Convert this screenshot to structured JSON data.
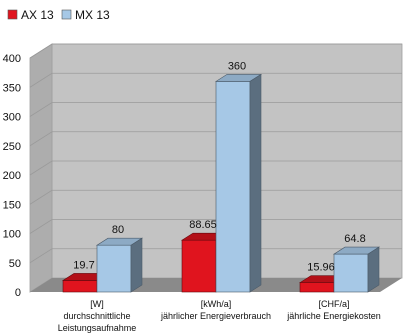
{
  "chart_data": {
    "type": "bar",
    "style": "3d-clustered-column",
    "categories": [
      [
        "[W]",
        "durchschnittliche",
        "Leistungsaufnahme"
      ],
      [
        "[kWh/a]",
        "jährlicher Energieverbrauch"
      ],
      [
        "[CHF/a]",
        "jährliche Energiekosten"
      ]
    ],
    "series": [
      {
        "name": "AX 13",
        "values": [
          19.7,
          88.65,
          15.96
        ],
        "value_labels": [
          "19.7",
          "88.65",
          "15.96"
        ]
      },
      {
        "name": "MX 13",
        "values": [
          80,
          360,
          64.8
        ],
        "value_labels": [
          "80",
          "360",
          "64.8"
        ]
      }
    ],
    "y_ticks": [
      "0",
      "50",
      "100",
      "150",
      "200",
      "250",
      "300",
      "350",
      "400"
    ],
    "ylim": [
      0,
      400
    ],
    "grid": true,
    "legend_position": "top-left",
    "colors": {
      "AX 13": "#e0141e",
      "MX 13": "#a6c8e6",
      "wall": "#c3c3c3",
      "floor": "#8a8a8a",
      "grid": "#9a9a9a"
    }
  }
}
